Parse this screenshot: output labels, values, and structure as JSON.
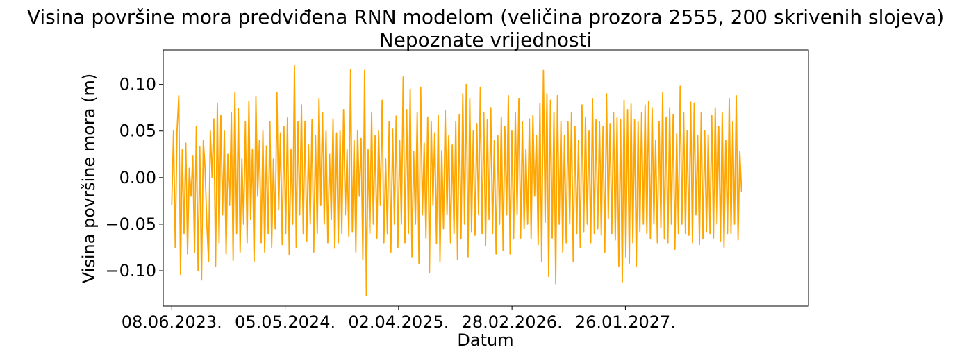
{
  "chart_data": {
    "type": "line",
    "title": "Visina površine mora predviđena RNN modelom (veličina prozora 2555, 200 skrivenih slojeva)",
    "subtitle": "Nepoznate vrijednosti",
    "xlabel": "Datum",
    "ylabel": "Visina površine mora (m)",
    "x_start": "2023-06-08",
    "x_end": "2028-01-01",
    "xlim": [
      "2023-05-14",
      "2028-07-15"
    ],
    "ylim": [
      -0.138,
      0.137
    ],
    "x_ticks": [
      {
        "date": "2023-06-08",
        "label": "08.06.2023."
      },
      {
        "date": "2024-05-05",
        "label": "05.05.2024."
      },
      {
        "date": "2025-04-02",
        "label": "02.04.2025."
      },
      {
        "date": "2026-02-28",
        "label": "28.02.2026."
      },
      {
        "date": "2027-01-26",
        "label": "26.01.2027."
      }
    ],
    "y_ticks": [
      {
        "value": 0.1,
        "label": "0.10"
      },
      {
        "value": 0.05,
        "label": "0.05"
      },
      {
        "value": 0.0,
        "label": "0.00"
      },
      {
        "value": -0.05,
        "label": "−0.05"
      },
      {
        "value": -0.1,
        "label": "−0.10"
      }
    ],
    "grid": false,
    "series": [
      {
        "color": "#ffa500",
        "values": [
          -0.03,
          0.05,
          -0.075,
          0.05,
          0.088,
          -0.104,
          0.03,
          -0.06,
          0.037,
          -0.082,
          0.01,
          -0.02,
          0.023,
          -0.08,
          0.055,
          -0.1,
          0.033,
          -0.11,
          0.04,
          0.01,
          -0.05,
          -0.09,
          0.05,
          0.0,
          0.063,
          -0.095,
          0.08,
          -0.07,
          0.067,
          -0.04,
          0.05,
          -0.082,
          0.025,
          -0.03,
          0.07,
          -0.089,
          0.091,
          -0.06,
          0.074,
          -0.08,
          0.02,
          -0.05,
          0.06,
          -0.07,
          0.082,
          -0.045,
          0.03,
          -0.09,
          0.087,
          -0.02,
          0.04,
          -0.07,
          0.05,
          -0.08,
          0.034,
          -0.06,
          0.06,
          -0.075,
          0.02,
          -0.055,
          0.091,
          -0.035,
          0.048,
          -0.072,
          0.055,
          -0.06,
          0.064,
          -0.083,
          0.03,
          -0.05,
          0.12,
          -0.075,
          0.06,
          -0.04,
          0.078,
          -0.06,
          0.06,
          -0.068,
          0.035,
          -0.05,
          0.062,
          -0.08,
          0.045,
          -0.06,
          0.085,
          -0.03,
          0.07,
          -0.05,
          0.05,
          -0.07,
          0.025,
          -0.045,
          0.063,
          -0.076,
          0.048,
          -0.07,
          0.05,
          -0.06,
          0.073,
          -0.04,
          0.03,
          -0.063,
          0.116,
          -0.058,
          0.04,
          -0.08,
          0.05,
          -0.02,
          0.042,
          -0.088,
          0.115,
          -0.127,
          0.03,
          -0.06,
          0.07,
          -0.05,
          0.045,
          -0.065,
          0.05,
          -0.03,
          0.083,
          -0.07,
          0.02,
          -0.06,
          0.06,
          -0.08,
          0.052,
          -0.05,
          0.066,
          -0.075,
          0.04,
          -0.05,
          0.108,
          -0.07,
          0.073,
          -0.06,
          0.095,
          -0.085,
          0.028,
          -0.05,
          0.07,
          -0.092,
          0.097,
          -0.04,
          0.037,
          -0.065,
          0.065,
          -0.102,
          0.06,
          -0.03,
          0.048,
          -0.071,
          0.067,
          -0.09,
          0.029,
          -0.055,
          0.072,
          -0.04,
          0.045,
          -0.07,
          0.035,
          -0.06,
          0.06,
          -0.088,
          0.068,
          -0.066,
          0.09,
          -0.05,
          0.1,
          -0.085,
          0.085,
          -0.058,
          0.05,
          -0.062,
          0.058,
          -0.04,
          0.097,
          -0.06,
          0.07,
          -0.073,
          0.062,
          -0.045,
          0.075,
          -0.06,
          0.04,
          -0.082,
          0.045,
          -0.05,
          0.065,
          -0.078,
          0.055,
          -0.04,
          0.088,
          -0.082,
          0.05,
          -0.066,
          0.07,
          -0.04,
          0.085,
          -0.065,
          0.06,
          -0.055,
          0.03,
          -0.05,
          0.063,
          -0.066,
          0.067,
          -0.02,
          0.045,
          -0.072,
          0.08,
          -0.09,
          0.115,
          -0.048,
          0.09,
          -0.106,
          0.083,
          -0.065,
          0.07,
          -0.114,
          0.088,
          -0.05,
          0.06,
          -0.08,
          0.045,
          -0.07,
          0.06,
          -0.05,
          0.07,
          -0.09,
          0.055,
          -0.06,
          0.04,
          -0.075,
          0.078,
          -0.058,
          0.065,
          -0.05,
          0.05,
          -0.07,
          0.085,
          -0.06,
          0.062,
          -0.055,
          0.06,
          -0.062,
          0.055,
          -0.08,
          0.09,
          -0.044,
          0.058,
          -0.06,
          0.07,
          -0.067,
          0.064,
          -0.095,
          0.062,
          -0.112,
          0.083,
          -0.085,
          0.073,
          -0.092,
          0.079,
          -0.07,
          0.062,
          -0.095,
          0.06,
          -0.058,
          0.07,
          -0.05,
          0.078,
          -0.06,
          0.082,
          -0.066,
          0.075,
          -0.05,
          0.04,
          -0.07,
          0.06,
          -0.054,
          0.091,
          -0.066,
          0.065,
          -0.07,
          0.075,
          -0.05,
          0.068,
          -0.077,
          0.047,
          -0.06,
          0.098,
          -0.05,
          0.07,
          -0.06,
          0.05,
          -0.062,
          0.081,
          -0.07,
          0.08,
          -0.04,
          0.045,
          -0.072,
          0.07,
          -0.066,
          0.05,
          -0.058,
          0.046,
          -0.06,
          0.067,
          -0.065,
          0.075,
          -0.05,
          0.055,
          -0.068,
          0.07,
          -0.075,
          0.04,
          -0.06,
          0.085,
          -0.06,
          0.06,
          -0.05,
          0.088,
          -0.067,
          0.028,
          -0.015
        ]
      }
    ]
  }
}
